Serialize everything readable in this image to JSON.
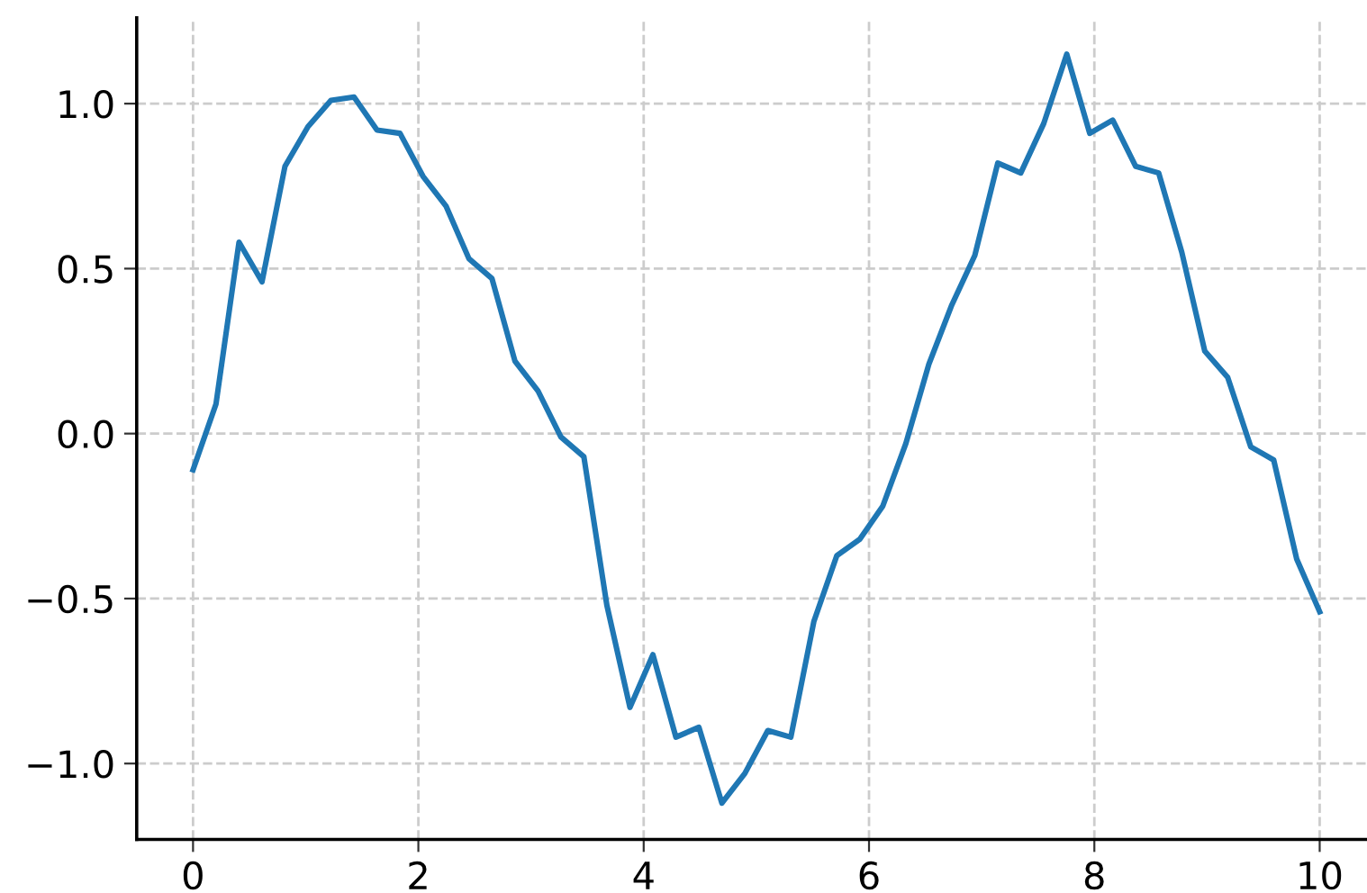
{
  "chart_data": {
    "type": "line",
    "x": [
      0,
      0.204,
      0.408,
      0.612,
      0.816,
      1.02,
      1.224,
      1.429,
      1.633,
      1.837,
      2.041,
      2.245,
      2.449,
      2.653,
      2.857,
      3.061,
      3.265,
      3.469,
      3.673,
      3.878,
      4.082,
      4.286,
      4.49,
      4.694,
      4.898,
      5.102,
      5.306,
      5.51,
      5.714,
      5.918,
      6.122,
      6.327,
      6.531,
      6.735,
      6.939,
      7.143,
      7.347,
      7.551,
      7.755,
      7.959,
      8.163,
      8.367,
      8.571,
      8.776,
      8.98,
      9.184,
      9.388,
      9.592,
      9.796,
      10
    ],
    "series": [
      {
        "color": "#1f77b4",
        "values": [
          -0.11,
          0.09,
          0.58,
          0.46,
          0.81,
          0.93,
          1.01,
          1.02,
          0.92,
          0.91,
          0.78,
          0.69,
          0.53,
          0.47,
          0.22,
          0.13,
          -0.01,
          -0.07,
          -0.52,
          -0.83,
          -0.67,
          -0.92,
          -0.89,
          -1.12,
          -1.03,
          -0.9,
          -0.92,
          -0.57,
          -0.37,
          -0.32,
          -0.22,
          -0.03,
          0.21,
          0.39,
          0.54,
          0.82,
          0.79,
          0.94,
          1.15,
          0.91,
          0.95,
          0.81,
          0.79,
          0.55,
          0.25,
          0.17,
          -0.04,
          -0.08,
          -0.38,
          -0.54
        ]
      }
    ],
    "xlim": [
      -0.5,
      10.42
    ],
    "ylim": [
      -1.23,
      1.26
    ],
    "xticks": [
      0,
      2,
      4,
      6,
      8,
      10
    ],
    "yticks": [
      {
        "value": -1.0,
        "label": "−1.0"
      },
      {
        "value": -0.5,
        "label": "−0.5"
      },
      {
        "value": 0.0,
        "label": "0.0"
      },
      {
        "value": 0.5,
        "label": "0.5"
      },
      {
        "value": 1.0,
        "label": "1.0"
      }
    ],
    "grid": true,
    "line_style": "solid",
    "marker": "none"
  }
}
